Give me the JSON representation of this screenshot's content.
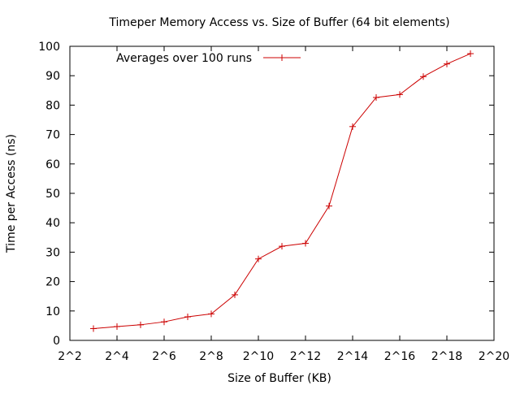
{
  "chart_data": {
    "type": "line",
    "title": "Timeper Memory Access vs. Size of Buffer (64 bit elements)",
    "xlabel": "Size of Buffer (KB)",
    "ylabel": "Time per Access (ns)",
    "x_scale": "log2",
    "xlim_exponent": [
      2,
      20
    ],
    "ylim": [
      0,
      100
    ],
    "x_ticks": [
      {
        "exp": 2,
        "label": "2^2"
      },
      {
        "exp": 4,
        "label": "2^4"
      },
      {
        "exp": 6,
        "label": "2^6"
      },
      {
        "exp": 8,
        "label": "2^8"
      },
      {
        "exp": 10,
        "label": "2^10"
      },
      {
        "exp": 12,
        "label": "2^12"
      },
      {
        "exp": 14,
        "label": "2^14"
      },
      {
        "exp": 16,
        "label": "2^16"
      },
      {
        "exp": 18,
        "label": "2^18"
      },
      {
        "exp": 20,
        "label": "2^20"
      }
    ],
    "y_ticks": [
      {
        "value": 0,
        "label": "0"
      },
      {
        "value": 10,
        "label": "10"
      },
      {
        "value": 20,
        "label": "20"
      },
      {
        "value": 30,
        "label": "30"
      },
      {
        "value": 40,
        "label": "40"
      },
      {
        "value": 50,
        "label": "50"
      },
      {
        "value": 60,
        "label": "60"
      },
      {
        "value": 70,
        "label": "70"
      },
      {
        "value": 80,
        "label": "80"
      },
      {
        "value": 90,
        "label": "90"
      },
      {
        "value": 100,
        "label": "100"
      }
    ],
    "grid": false,
    "legend_position": "top-left",
    "series": [
      {
        "name": "Averages over 100 runs",
        "color": "#cc0000",
        "marker": "plus",
        "x_exponent": [
          3,
          4,
          5,
          6,
          7,
          8,
          9,
          10,
          11,
          12,
          13,
          14,
          15,
          16,
          17,
          18,
          19
        ],
        "values": [
          4.0,
          4.7,
          5.3,
          6.3,
          8.0,
          9.0,
          15.5,
          27.7,
          32.0,
          33.0,
          45.7,
          72.7,
          82.6,
          83.6,
          89.7,
          94.0,
          97.5
        ]
      }
    ]
  }
}
